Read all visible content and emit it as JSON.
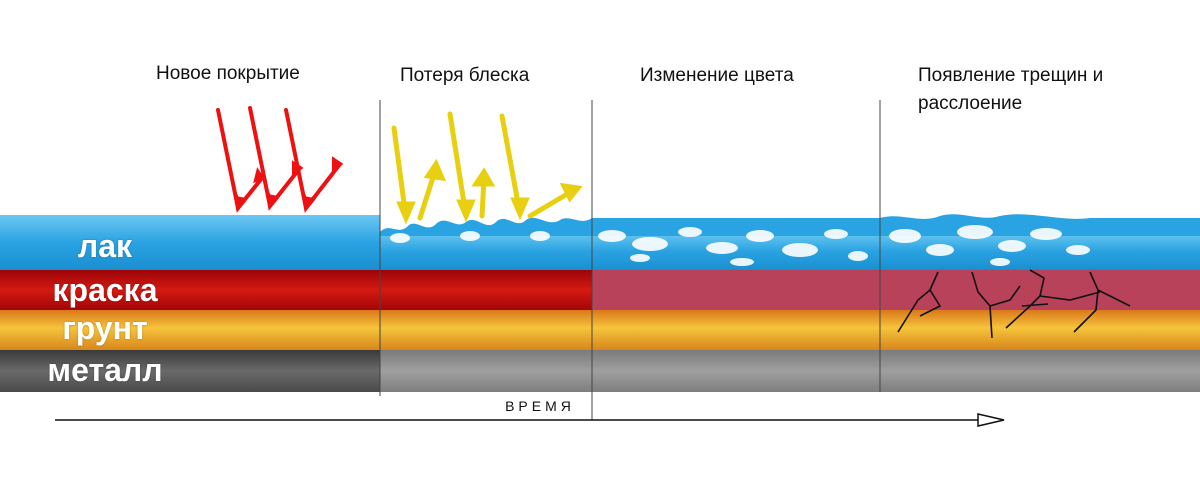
{
  "stages": [
    {
      "id": "new",
      "title": "Новое покрытие"
    },
    {
      "id": "gloss",
      "title": "Потеря блеска"
    },
    {
      "id": "color",
      "title": "Изменение цвета"
    },
    {
      "id": "cracks",
      "title": "Появление трещин и расслоение"
    }
  ],
  "layers": [
    {
      "id": "lak",
      "label": "лак"
    },
    {
      "id": "kraska",
      "label": "краска"
    },
    {
      "id": "grunt",
      "label": "грунт"
    },
    {
      "id": "metall",
      "label": "металл"
    }
  ],
  "axis": {
    "label": "ВРЕМЯ"
  },
  "colors": {
    "varnish": "#2aa3e2",
    "paint": "#c40f12",
    "paint_faded": "#b8425a",
    "primer": "#f2b330",
    "metal": "#5a5a5a",
    "arrow_new": "#ee1111",
    "arrow_gloss": "#e8cf10",
    "divider": "#444444",
    "crack": "#111111"
  },
  "icons": [
    "red-light-arrows-icon",
    "yellow-light-arrows-icon",
    "right-arrow-icon"
  ]
}
